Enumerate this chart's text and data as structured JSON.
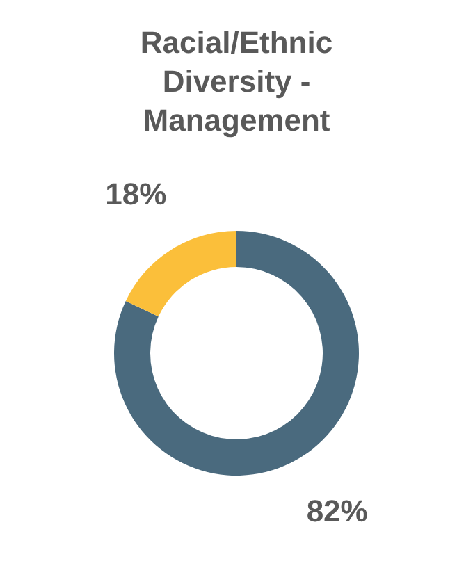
{
  "chart_data": {
    "type": "donut",
    "title": "Racial/Ethnic Diversity - Management",
    "categories": [
      null,
      null
    ],
    "values": [
      82,
      18
    ],
    "colors": [
      "#4a6a7e",
      "#fbbf3a"
    ],
    "value_labels": [
      "82%",
      "18%"
    ],
    "legend": false
  }
}
